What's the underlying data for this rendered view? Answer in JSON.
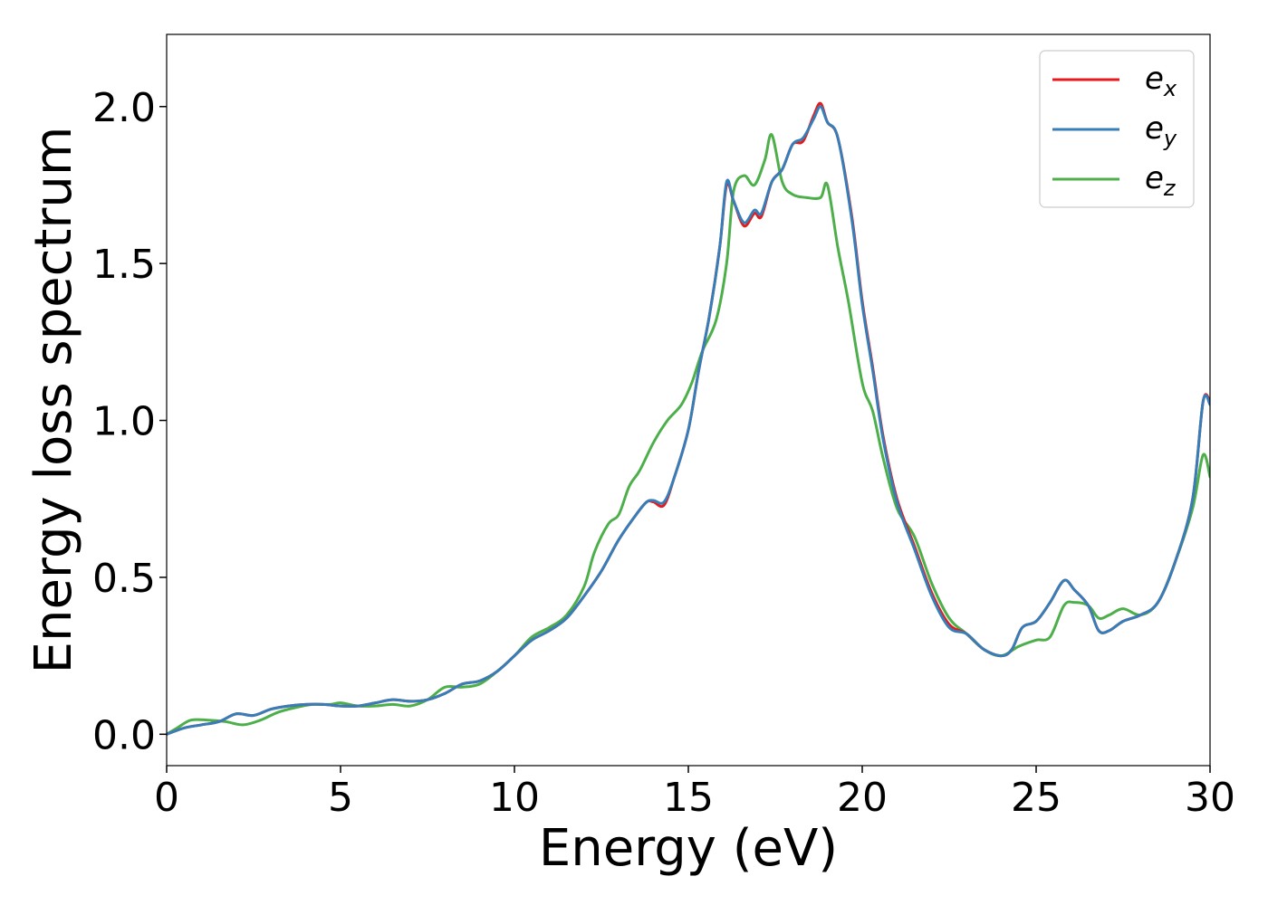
{
  "chart_data": {
    "type": "line",
    "title": "",
    "xlabel": "Energy (eV)",
    "ylabel": "Energy loss spectrum",
    "xlim": [
      0,
      30
    ],
    "ylim": [
      -0.1,
      2.23
    ],
    "xticks": [
      0,
      5,
      10,
      15,
      20,
      25,
      30
    ],
    "yticks": [
      0.0,
      0.5,
      1.0,
      1.5,
      2.0
    ],
    "xtick_labels": [
      "0",
      "5",
      "10",
      "15",
      "20",
      "25",
      "30"
    ],
    "ytick_labels": [
      "0.0",
      "0.5",
      "1.0",
      "1.5",
      "2.0"
    ],
    "grid": false,
    "legend_position": "top-right",
    "series": [
      {
        "name": "e_x",
        "legend_base": "e",
        "legend_sub": "x",
        "color": "#e41a1c",
        "x": [
          0,
          0.5,
          1,
          1.5,
          2,
          2.5,
          3,
          3.5,
          4,
          4.5,
          5,
          5.5,
          6,
          6.5,
          7,
          7.5,
          8,
          8.5,
          9,
          9.5,
          10,
          10.5,
          11,
          11.5,
          12,
          12.5,
          13,
          13.5,
          13.8,
          14,
          14.3,
          14.6,
          15,
          15.3,
          15.6,
          15.9,
          16.1,
          16.3,
          16.6,
          16.9,
          17.1,
          17.4,
          17.7,
          18,
          18.3,
          18.6,
          18.8,
          19,
          19.3,
          19.7,
          20,
          20.3,
          20.6,
          21,
          21.5,
          22,
          22.5,
          23,
          23.5,
          24,
          24.3,
          24.6,
          25,
          25.4,
          25.8,
          26.1,
          26.5,
          26.8,
          27.1,
          27.5,
          28,
          28.5,
          29,
          29.5,
          29.8,
          30
        ],
        "values": [
          0.0,
          0.02,
          0.03,
          0.04,
          0.065,
          0.06,
          0.08,
          0.09,
          0.095,
          0.095,
          0.09,
          0.09,
          0.1,
          0.11,
          0.105,
          0.11,
          0.13,
          0.16,
          0.17,
          0.2,
          0.25,
          0.3,
          0.33,
          0.37,
          0.44,
          0.52,
          0.62,
          0.7,
          0.74,
          0.74,
          0.73,
          0.82,
          0.97,
          1.16,
          1.33,
          1.55,
          1.75,
          1.7,
          1.62,
          1.66,
          1.65,
          1.76,
          1.8,
          1.88,
          1.89,
          1.97,
          2.01,
          1.95,
          1.9,
          1.65,
          1.38,
          1.17,
          0.95,
          0.75,
          0.6,
          0.45,
          0.35,
          0.32,
          0.27,
          0.25,
          0.27,
          0.34,
          0.36,
          0.42,
          0.49,
          0.46,
          0.41,
          0.33,
          0.33,
          0.36,
          0.38,
          0.42,
          0.55,
          0.75,
          1.06,
          1.06
        ]
      },
      {
        "name": "e_y",
        "legend_base": "e",
        "legend_sub": "y",
        "color": "#377eb8",
        "x": [
          0,
          0.5,
          1,
          1.5,
          2,
          2.5,
          3,
          3.5,
          4,
          4.5,
          5,
          5.5,
          6,
          6.5,
          7,
          7.5,
          8,
          8.5,
          9,
          9.5,
          10,
          10.5,
          11,
          11.5,
          12,
          12.5,
          13,
          13.5,
          13.8,
          14,
          14.3,
          14.6,
          15,
          15.3,
          15.6,
          15.9,
          16.1,
          16.3,
          16.6,
          16.9,
          17.1,
          17.4,
          17.7,
          18,
          18.3,
          18.6,
          18.8,
          19,
          19.3,
          19.7,
          20,
          20.3,
          20.6,
          21,
          21.5,
          22,
          22.5,
          23,
          23.5,
          24,
          24.3,
          24.6,
          25,
          25.4,
          25.8,
          26.1,
          26.5,
          26.8,
          27.1,
          27.5,
          28,
          28.5,
          29,
          29.5,
          29.8,
          30
        ],
        "values": [
          0.0,
          0.02,
          0.03,
          0.04,
          0.065,
          0.06,
          0.08,
          0.09,
          0.095,
          0.095,
          0.09,
          0.09,
          0.1,
          0.11,
          0.105,
          0.11,
          0.13,
          0.16,
          0.17,
          0.2,
          0.25,
          0.3,
          0.33,
          0.37,
          0.44,
          0.52,
          0.62,
          0.7,
          0.74,
          0.745,
          0.74,
          0.82,
          0.97,
          1.16,
          1.33,
          1.55,
          1.76,
          1.7,
          1.63,
          1.67,
          1.66,
          1.76,
          1.8,
          1.88,
          1.9,
          1.96,
          2.0,
          1.95,
          1.9,
          1.64,
          1.37,
          1.16,
          0.94,
          0.74,
          0.59,
          0.44,
          0.34,
          0.32,
          0.27,
          0.25,
          0.27,
          0.34,
          0.36,
          0.42,
          0.49,
          0.46,
          0.41,
          0.33,
          0.33,
          0.36,
          0.38,
          0.42,
          0.55,
          0.75,
          1.06,
          1.05
        ]
      },
      {
        "name": "e_z",
        "legend_base": "e",
        "legend_sub": "z",
        "color": "#4daf4a",
        "x": [
          0,
          0.3,
          0.7,
          1.2,
          1.7,
          2.2,
          2.7,
          3.2,
          3.7,
          4.2,
          4.7,
          5,
          5.5,
          6,
          6.5,
          7,
          7.5,
          8,
          8.5,
          9,
          9.5,
          10,
          10.5,
          11,
          11.5,
          12,
          12.3,
          12.7,
          13,
          13.3,
          13.6,
          14,
          14.4,
          14.8,
          15.1,
          15.4,
          15.8,
          16.1,
          16.3,
          16.6,
          16.9,
          17.2,
          17.4,
          17.7,
          18,
          18.4,
          18.8,
          19.0,
          19.3,
          19.6,
          20,
          20.3,
          20.6,
          21,
          21.5,
          22,
          22.5,
          23,
          23.5,
          24,
          24.5,
          25,
          25.4,
          25.8,
          26.1,
          26.5,
          26.8,
          27.1,
          27.5,
          28,
          28.5,
          29,
          29.5,
          29.8,
          30
        ],
        "values": [
          0.0,
          0.02,
          0.045,
          0.045,
          0.04,
          0.03,
          0.045,
          0.07,
          0.085,
          0.095,
          0.095,
          0.1,
          0.09,
          0.09,
          0.095,
          0.09,
          0.11,
          0.15,
          0.15,
          0.16,
          0.2,
          0.25,
          0.31,
          0.34,
          0.38,
          0.47,
          0.58,
          0.67,
          0.7,
          0.79,
          0.84,
          0.93,
          1.0,
          1.05,
          1.12,
          1.22,
          1.32,
          1.5,
          1.73,
          1.78,
          1.75,
          1.83,
          1.91,
          1.76,
          1.72,
          1.71,
          1.71,
          1.75,
          1.55,
          1.38,
          1.12,
          1.03,
          0.88,
          0.72,
          0.63,
          0.48,
          0.37,
          0.32,
          0.27,
          0.25,
          0.28,
          0.3,
          0.31,
          0.41,
          0.42,
          0.41,
          0.37,
          0.38,
          0.4,
          0.38,
          0.42,
          0.55,
          0.72,
          0.89,
          0.82
        ]
      }
    ]
  },
  "colors": {
    "axis": "#000000",
    "background": "#ffffff",
    "legend_border": "#cccccc"
  }
}
